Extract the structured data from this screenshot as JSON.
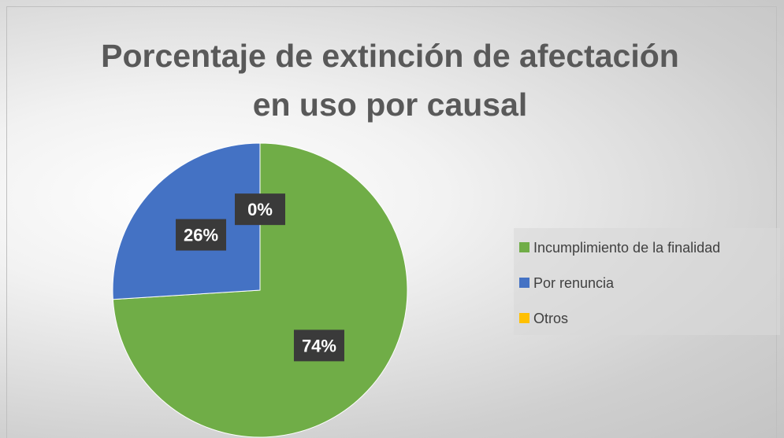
{
  "chart_data": {
    "type": "pie",
    "title": "Porcentaje de extinción de afectación en uso por causal",
    "categories": [
      "Incumplimiento de la finalidad",
      "Por renuncia",
      "Otros"
    ],
    "values": [
      74,
      26,
      0
    ],
    "value_labels": [
      "74%",
      "26%",
      "0%"
    ],
    "colors": [
      "#70ad47",
      "#4472c4",
      "#ffc000"
    ],
    "legend": "right"
  }
}
